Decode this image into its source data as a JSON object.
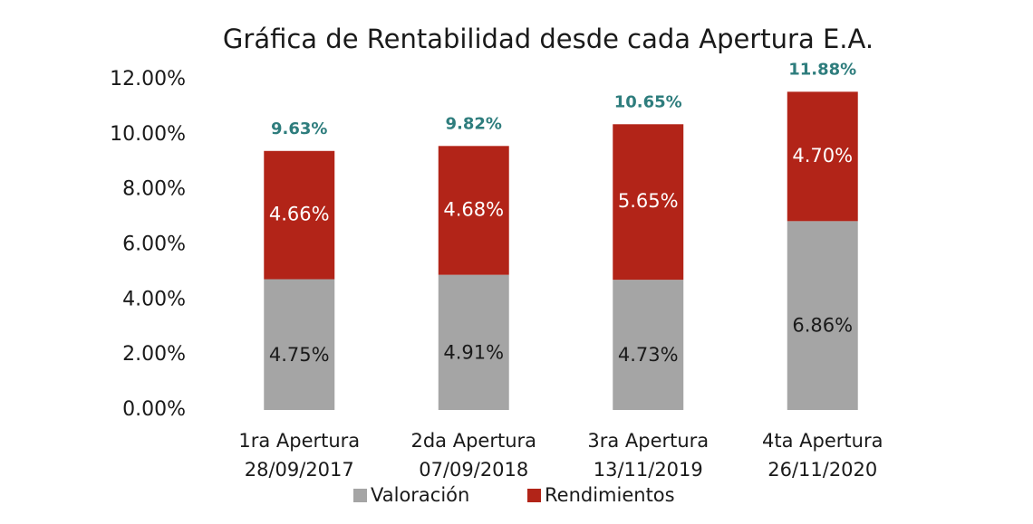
{
  "chart_data": {
    "type": "stacked_bar",
    "title": "Gráfica de Rentabilidad desde cada Apertura E.A.",
    "categories": [
      [
        "1ra Apertura",
        "28/09/2017"
      ],
      [
        "2da Apertura",
        "07/09/2018"
      ],
      [
        "3ra Apertura",
        "13/11/2019"
      ],
      [
        "4ta Apertura",
        "26/11/2020"
      ]
    ],
    "series": [
      {
        "name": "Valoración",
        "color": "#a5a5a5",
        "label_color": "#1a1a1a",
        "values": [
          4.75,
          4.91,
          4.73,
          6.86
        ],
        "value_labels": [
          "4.75%",
          "4.91%",
          "4.73%",
          "6.86%"
        ]
      },
      {
        "name": "Rendimientos",
        "color": "#b22418",
        "label_color": "#ffffff",
        "values": [
          4.66,
          4.68,
          5.65,
          4.7
        ],
        "value_labels": [
          "4.66%",
          "4.68%",
          "5.65%",
          "4.70%"
        ]
      }
    ],
    "totals": {
      "color": "#2e7d7d",
      "values": [
        9.63,
        9.82,
        10.65,
        11.88
      ],
      "value_labels": [
        "9.63%",
        "9.82%",
        "10.65%",
        "11.88%"
      ]
    },
    "ylim": [
      0,
      12
    ],
    "yticks": [
      {
        "value": 0,
        "label": "0.00%"
      },
      {
        "value": 2,
        "label": "2.00%"
      },
      {
        "value": 4,
        "label": "4.00%"
      },
      {
        "value": 6,
        "label": "6.00%"
      },
      {
        "value": 8,
        "label": "8.00%"
      },
      {
        "value": 10,
        "label": "10.00%"
      },
      {
        "value": 12,
        "label": "12.00%"
      }
    ],
    "legend": "bottom"
  }
}
